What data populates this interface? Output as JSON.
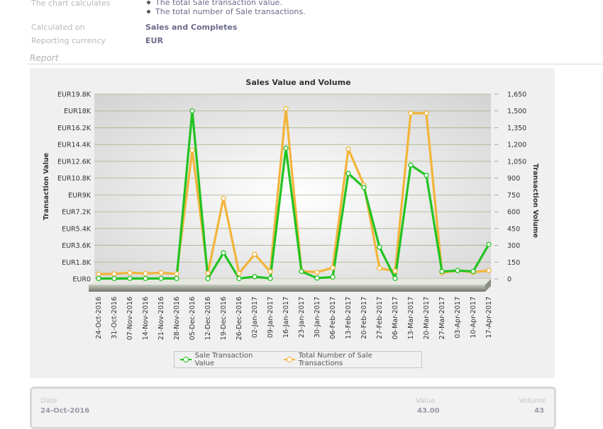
{
  "info": {
    "calc_label": "The chart calculates",
    "calc_items": [
      "The total Sale transaction value.",
      "The total number of Sale transactions."
    ],
    "calculated_on_label": "Calculated on",
    "calculated_on_value": "Sales and Completes",
    "currency_label": "Reporting currency",
    "currency_value": "EUR"
  },
  "section_title": "Report",
  "colors": {
    "value_series": "#22c322",
    "volume_series": "#f2b43a"
  },
  "chart_data": {
    "type": "line",
    "title": "Sales Value and Volume",
    "ylabel": "Transaction Value",
    "y2label": "Transaction Volume",
    "ylim": [
      0,
      19800
    ],
    "y2lim": [
      0,
      1650
    ],
    "yticks": [
      "EUR0",
      "EUR1.8K",
      "EUR3.6K",
      "EUR5.4K",
      "EUR7.2K",
      "EUR9K",
      "EUR10.8K",
      "EUR12.6K",
      "EUR14.4K",
      "EUR16.2K",
      "EUR18K",
      "EUR19.8K"
    ],
    "y2ticks": [
      "0",
      "150",
      "300",
      "450",
      "600",
      "750",
      "900",
      "1,050",
      "1,200",
      "1,350",
      "1,500",
      "1,650"
    ],
    "categories": [
      "24-Oct-2016",
      "31-Oct-2016",
      "07-Nov-2016",
      "14-Nov-2016",
      "21-Nov-2016",
      "28-Nov-2016",
      "05-Dec-2016",
      "12-Dec-2016",
      "19-Dec-2016",
      "26-Dec-2016",
      "02-Jan-2017",
      "09-Jan-2017",
      "16-Jan-2017",
      "23-Jan-2017",
      "30-Jan-2017",
      "06-Feb-2017",
      "13-Feb-2017",
      "20-Feb-2017",
      "27-Feb-2017",
      "06-Mar-2017",
      "13-Mar-2017",
      "20-Mar-2017",
      "27-Mar-2017",
      "03-Apr-2017",
      "10-Apr-2017",
      "17-Apr-2017"
    ],
    "series": [
      {
        "name": "Sale Transaction Value",
        "axis": "left",
        "values": [
          43,
          40,
          50,
          45,
          50,
          45,
          18000,
          40,
          2800,
          40,
          240,
          50,
          14000,
          800,
          90,
          200,
          11300,
          9800,
          3400,
          50,
          12200,
          11100,
          800,
          900,
          800,
          3700
        ]
      },
      {
        "name": "Total Number of Sale Transactions",
        "axis": "right",
        "values": [
          43,
          45,
          55,
          48,
          55,
          45,
          1150,
          50,
          720,
          50,
          220,
          65,
          1520,
          70,
          60,
          100,
          1160,
          840,
          95,
          70,
          1480,
          1480,
          55,
          75,
          60,
          75
        ]
      }
    ],
    "grid": true,
    "legend": "bottom-center"
  },
  "table": {
    "headers": [
      "Date",
      "Value",
      "Volume"
    ],
    "rows": [
      [
        "24-Oct-2016",
        "43.00",
        "43"
      ]
    ]
  }
}
